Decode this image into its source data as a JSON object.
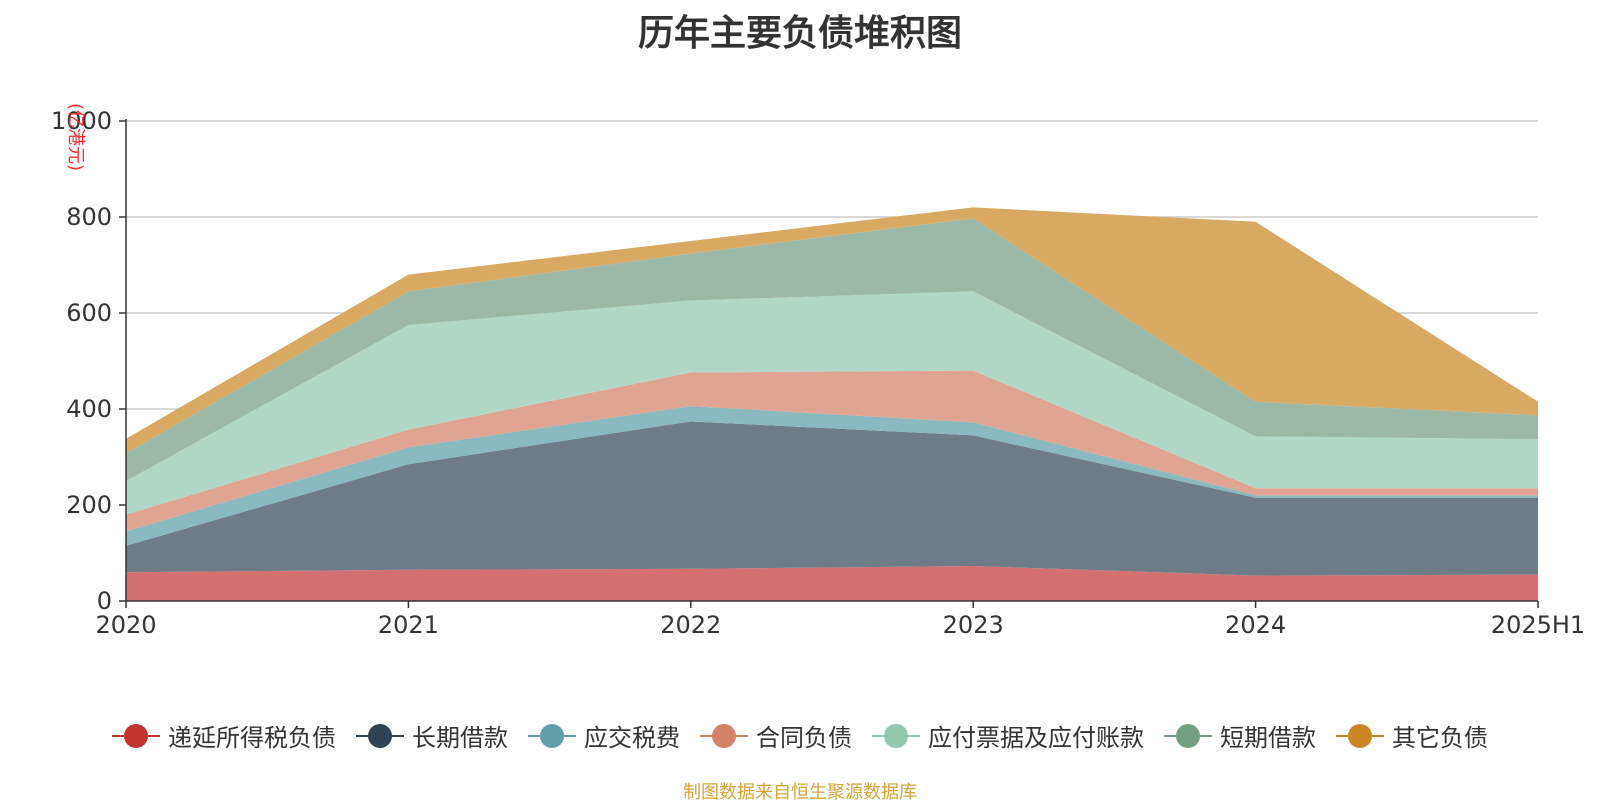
{
  "chart_data": {
    "type": "area",
    "title": "历年主要负债堆积图",
    "ylabel": "(亿港元)",
    "xlabel": "",
    "categories": [
      "2020",
      "2021",
      "2022",
      "2023",
      "2024",
      "2025H1"
    ],
    "ylim": [
      0,
      1000
    ],
    "yticks": [
      0,
      200,
      400,
      600,
      800,
      1000
    ],
    "stacked": true,
    "grid": true,
    "legend_position": "bottom",
    "series": [
      {
        "name": "递延所得税负债",
        "color": "#c23531",
        "area_color": "#d4706f",
        "values": [
          60,
          65,
          67,
          73,
          53,
          55
        ]
      },
      {
        "name": "长期借款",
        "color": "#2f4554",
        "area_color": "#6e7c87",
        "values": [
          55,
          220,
          307,
          272,
          162,
          160
        ]
      },
      {
        "name": "应交税费",
        "color": "#61a0a8",
        "area_color": "#8ab9bf",
        "values": [
          30,
          35,
          32,
          27,
          5,
          5
        ]
      },
      {
        "name": "合同负债",
        "color": "#d48265",
        "area_color": "#e0a592",
        "values": [
          35,
          37,
          70,
          108,
          15,
          15
        ]
      },
      {
        "name": "应付票据及应付账款",
        "color": "#91c7ae",
        "area_color": "#b1d8c6",
        "values": [
          70,
          218,
          150,
          165,
          108,
          102
        ]
      },
      {
        "name": "短期借款",
        "color": "#749f83",
        "area_color": "#9cb9a7",
        "values": [
          58,
          70,
          98,
          152,
          72,
          50
        ]
      },
      {
        "name": "其它负债",
        "color": "#ca8622",
        "area_color": "#d7a962",
        "values": [
          30,
          35,
          26,
          23,
          375,
          28
        ]
      }
    ]
  },
  "source_note": "制图数据来自恒生聚源数据库"
}
